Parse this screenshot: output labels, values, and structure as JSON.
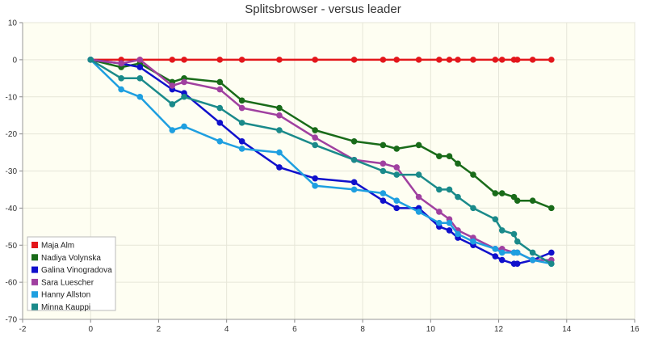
{
  "chart_data": {
    "type": "line",
    "title": "Splitsbrowser - versus leader",
    "xlabel": "",
    "ylabel": "",
    "xlim": [
      -2,
      16
    ],
    "ylim": [
      -70,
      10
    ],
    "x_ticks": [
      "-2",
      "0",
      "2",
      "4",
      "6",
      "8",
      "10",
      "12",
      "14",
      "16"
    ],
    "y_ticks": [
      "10",
      "0",
      "-10",
      "-20",
      "-30",
      "-40",
      "-50",
      "-60",
      "-70"
    ],
    "grid": true,
    "legend_position": "bottom-left",
    "plot_background": "#fefef2",
    "series": [
      {
        "name": "Maja Alm",
        "color": "#e3161b",
        "points": [
          [
            0,
            0
          ],
          [
            0.9,
            0
          ],
          [
            1.45,
            0
          ],
          [
            2.4,
            0
          ],
          [
            2.75,
            0
          ],
          [
            3.8,
            0
          ],
          [
            4.45,
            0
          ],
          [
            5.55,
            0
          ],
          [
            6.6,
            0
          ],
          [
            7.75,
            0
          ],
          [
            8.6,
            0
          ],
          [
            9.0,
            0
          ],
          [
            9.65,
            0
          ],
          [
            10.25,
            0
          ],
          [
            10.55,
            0
          ],
          [
            10.8,
            0
          ],
          [
            11.25,
            0
          ],
          [
            11.9,
            0
          ],
          [
            12.1,
            0
          ],
          [
            12.45,
            0
          ],
          [
            12.55,
            0
          ],
          [
            13.0,
            0
          ],
          [
            13.55,
            0
          ]
        ]
      },
      {
        "name": "Nadiya Volynska",
        "color": "#196b19",
        "points": [
          [
            0,
            0
          ],
          [
            0.9,
            -2
          ],
          [
            1.45,
            -1
          ],
          [
            2.4,
            -6
          ],
          [
            2.75,
            -5
          ],
          [
            3.8,
            -6
          ],
          [
            4.45,
            -11
          ],
          [
            5.55,
            -13
          ],
          [
            6.6,
            -19
          ],
          [
            7.75,
            -22
          ],
          [
            8.6,
            -23
          ],
          [
            9.0,
            -24
          ],
          [
            9.65,
            -23
          ],
          [
            10.25,
            -26
          ],
          [
            10.55,
            -26
          ],
          [
            10.8,
            -28
          ],
          [
            11.25,
            -31
          ],
          [
            11.9,
            -36
          ],
          [
            12.1,
            -36
          ],
          [
            12.45,
            -37
          ],
          [
            12.55,
            -38
          ],
          [
            13.0,
            -38
          ],
          [
            13.55,
            -40
          ]
        ]
      },
      {
        "name": "Galina Vinogradova",
        "color": "#1010cc",
        "points": [
          [
            0,
            0
          ],
          [
            0.9,
            -1
          ],
          [
            1.45,
            -2
          ],
          [
            2.4,
            -8
          ],
          [
            2.75,
            -9
          ],
          [
            3.8,
            -17
          ],
          [
            4.45,
            -22
          ],
          [
            5.55,
            -29
          ],
          [
            6.6,
            -32
          ],
          [
            7.75,
            -33
          ],
          [
            8.6,
            -38
          ],
          [
            9.0,
            -40
          ],
          [
            9.65,
            -40
          ],
          [
            10.25,
            -45
          ],
          [
            10.55,
            -46
          ],
          [
            10.8,
            -48
          ],
          [
            11.25,
            -50
          ],
          [
            11.9,
            -53
          ],
          [
            12.1,
            -54
          ],
          [
            12.45,
            -55
          ],
          [
            12.55,
            -55
          ],
          [
            13.0,
            -54
          ],
          [
            13.55,
            -52
          ]
        ]
      },
      {
        "name": "Sara Luescher",
        "color": "#a040a0",
        "points": [
          [
            0,
            0
          ],
          [
            0.9,
            -1
          ],
          [
            1.45,
            0
          ],
          [
            2.4,
            -7
          ],
          [
            2.75,
            -6
          ],
          [
            3.8,
            -8
          ],
          [
            4.45,
            -13
          ],
          [
            5.55,
            -15
          ],
          [
            6.6,
            -21
          ],
          [
            7.75,
            -27
          ],
          [
            8.6,
            -28
          ],
          [
            9.0,
            -29
          ],
          [
            9.65,
            -37
          ],
          [
            10.25,
            -41
          ],
          [
            10.55,
            -43
          ],
          [
            10.8,
            -46
          ],
          [
            11.25,
            -48
          ],
          [
            11.9,
            -51
          ],
          [
            12.1,
            -51
          ],
          [
            12.45,
            -52
          ],
          [
            12.55,
            -52
          ],
          [
            13.0,
            -54
          ],
          [
            13.55,
            -54
          ]
        ]
      },
      {
        "name": "Hanny Allston",
        "color": "#1e9fe0",
        "points": [
          [
            0,
            0
          ],
          [
            0.9,
            -8
          ],
          [
            1.45,
            -10
          ],
          [
            2.4,
            -19
          ],
          [
            2.75,
            -18
          ],
          [
            3.8,
            -22
          ],
          [
            4.45,
            -24
          ],
          [
            5.55,
            -25
          ],
          [
            6.6,
            -34
          ],
          [
            7.75,
            -35
          ],
          [
            8.6,
            -36
          ],
          [
            9.0,
            -38
          ],
          [
            9.65,
            -41
          ],
          [
            10.25,
            -44
          ],
          [
            10.55,
            -44
          ],
          [
            10.8,
            -47
          ],
          [
            11.25,
            -49
          ],
          [
            11.9,
            -51
          ],
          [
            12.1,
            -52
          ],
          [
            12.45,
            -52
          ],
          [
            12.55,
            -52
          ],
          [
            13.0,
            -54
          ],
          [
            13.55,
            -55
          ]
        ]
      },
      {
        "name": "Minna Kauppi",
        "color": "#1a8a8a",
        "points": [
          [
            0,
            0
          ],
          [
            0.9,
            -5
          ],
          [
            1.45,
            -5
          ],
          [
            2.4,
            -12
          ],
          [
            2.75,
            -10
          ],
          [
            3.8,
            -13
          ],
          [
            4.45,
            -17
          ],
          [
            5.55,
            -19
          ],
          [
            6.6,
            -23
          ],
          [
            7.75,
            -27
          ],
          [
            8.6,
            -30
          ],
          [
            9.0,
            -31
          ],
          [
            9.65,
            -31
          ],
          [
            10.25,
            -35
          ],
          [
            10.55,
            -35
          ],
          [
            10.8,
            -37
          ],
          [
            11.25,
            -40
          ],
          [
            11.9,
            -43
          ],
          [
            12.1,
            -46
          ],
          [
            12.45,
            -47
          ],
          [
            12.55,
            -49
          ],
          [
            13.0,
            -52
          ],
          [
            13.55,
            -55
          ]
        ]
      }
    ]
  }
}
